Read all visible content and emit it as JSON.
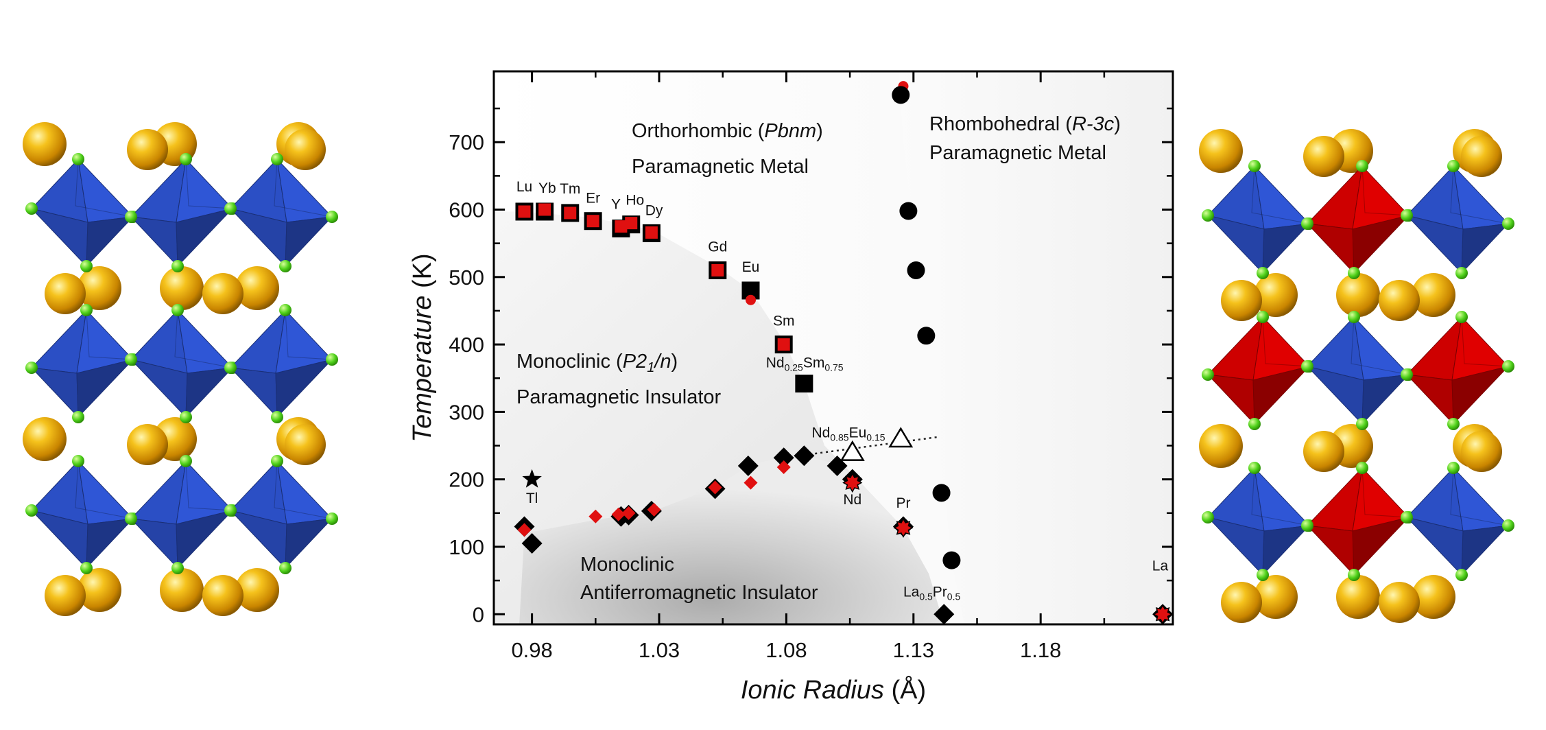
{
  "chart_data": {
    "type": "scatter",
    "xlabel": "Ionic Radius (Å)",
    "ylabel": "Temperature (K)",
    "xlim": [
      0.965,
      1.232
    ],
    "ylim": [
      -15,
      805
    ],
    "xticks": [
      "0.98",
      "1.03",
      "1.08",
      "1.13",
      "1.18"
    ],
    "yticks": [
      "0",
      "100",
      "200",
      "300",
      "400",
      "500",
      "600",
      "700"
    ],
    "regions": [
      {
        "line1": "Orthorhombic (",
        "italic": "Pbnm",
        "line1_end": ")",
        "line2": "Paramagnetic Metal"
      },
      {
        "line1": "Rhombohedral (",
        "italic": "R-3c",
        "line1_end": ")",
        "line2": "Paramagnetic Metal"
      },
      {
        "line1": "Monoclinic (",
        "italic": "P2",
        "sub": "1",
        "italic2": "/n",
        "line1_end": ")",
        "line2": "Paramagnetic Insulator"
      },
      {
        "line1": "Monoclinic",
        "line2": "Antiferromagnetic Insulator"
      }
    ],
    "series": [
      {
        "marker": "square",
        "color": "#000000",
        "x": [
          0.977,
          0.985,
          0.995,
          1.004,
          1.015,
          1.019,
          1.027,
          1.053,
          1.066,
          1.079,
          1.087
        ],
        "y": [
          597,
          597,
          595,
          583,
          572,
          578,
          565,
          510,
          480,
          400,
          342
        ]
      },
      {
        "marker": "square",
        "color": "#e01010",
        "x": [
          0.977,
          0.985,
          0.995,
          1.004,
          1.015,
          1.019,
          1.027,
          1.053,
          1.079
        ],
        "y": [
          597,
          600,
          595,
          583,
          575,
          580,
          566,
          510,
          400
        ]
      },
      {
        "marker": "circle",
        "color": "#e01010",
        "x": [
          1.066,
          1.126
        ],
        "y": [
          466,
          783
        ]
      },
      {
        "marker": "diamond",
        "color": "#000000",
        "x": [
          0.977,
          0.98,
          1.015,
          1.018,
          1.027,
          1.052,
          1.065,
          1.079,
          1.087,
          1.1,
          1.106,
          1.126,
          1.142,
          1.228
        ],
        "y": [
          130,
          105,
          145,
          147,
          153,
          186,
          220,
          232,
          235,
          220,
          200,
          130,
          0,
          0
        ]
      },
      {
        "marker": "diamond",
        "color": "#e01010",
        "x": [
          0.977,
          1.005,
          1.014,
          1.018,
          1.028,
          1.052,
          1.066,
          1.079
        ],
        "y": [
          125,
          145,
          148,
          150,
          155,
          188,
          195,
          218
        ]
      },
      {
        "marker": "circle",
        "color": "#000000",
        "x": [
          1.125,
          1.128,
          1.131,
          1.135,
          1.141,
          1.145
        ],
        "y": [
          770,
          598,
          510,
          413,
          180,
          80
        ]
      },
      {
        "marker": "redstar",
        "color": "#e01010",
        "x": [
          1.106,
          1.126,
          1.228
        ],
        "y": [
          195,
          128,
          0
        ]
      },
      {
        "marker": "triangle",
        "color": "#000000",
        "x": [
          1.106,
          1.125
        ],
        "y": [
          240,
          260
        ]
      },
      {
        "marker": "star",
        "color": "#000000",
        "x": [
          0.98
        ],
        "y": [
          200
        ]
      }
    ],
    "dotted_line": {
      "x": [
        1.087,
        1.14
      ],
      "y": [
        236,
        263
      ]
    },
    "point_labels": [
      {
        "text": "Lu",
        "x": 0.977,
        "y": 627
      },
      {
        "text": "Yb",
        "x": 0.986,
        "y": 625
      },
      {
        "text": "Tm",
        "x": 0.995,
        "y": 624
      },
      {
        "text": "Er",
        "x": 1.004,
        "y": 610
      },
      {
        "text": "Y",
        "x": 1.013,
        "y": 601
      },
      {
        "text": "Ho",
        "x": 1.0205,
        "y": 607
      },
      {
        "text": "Dy",
        "x": 1.028,
        "y": 592
      },
      {
        "text": "Gd",
        "x": 1.053,
        "y": 538
      },
      {
        "text": "Eu",
        "x": 1.066,
        "y": 508
      },
      {
        "text": "Sm",
        "x": 1.079,
        "y": 428
      },
      {
        "text": "Tl",
        "x": 0.98,
        "y": 165
      },
      {
        "text": "Nd",
        "x": 1.106,
        "y": 163
      },
      {
        "text": "Pr",
        "x": 1.126,
        "y": 158
      },
      {
        "text": "La",
        "x": 1.227,
        "y": 65
      }
    ],
    "sub_labels": [
      {
        "parts": [
          [
            "Nd",
            ""
          ],
          [
            "0.25",
            "sub"
          ],
          [
            "Sm",
            ""
          ],
          [
            "0.75",
            "sub"
          ]
        ],
        "x": 1.072,
        "y": 366
      },
      {
        "parts": [
          [
            "Nd",
            ""
          ],
          [
            "0.85",
            "sub"
          ],
          [
            "Eu",
            ""
          ],
          [
            "0.15",
            "sub"
          ]
        ],
        "x": 1.09,
        "y": 262
      },
      {
        "parts": [
          [
            "La",
            ""
          ],
          [
            "0.5",
            "sub"
          ],
          [
            "Pr",
            ""
          ],
          [
            "0.5",
            "sub"
          ]
        ],
        "x": 1.126,
        "y": 26
      }
    ]
  },
  "structures": {
    "left": {
      "colors": [
        "#2f56d6"
      ]
    },
    "right": {
      "colors": [
        "#2f56d6",
        "#e00000"
      ]
    }
  }
}
